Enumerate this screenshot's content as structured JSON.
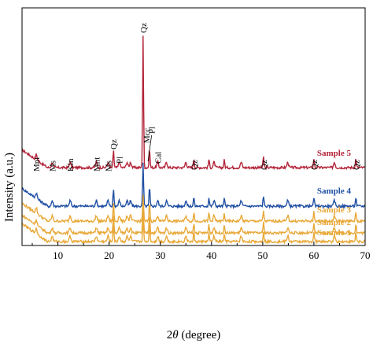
{
  "chart_data": {
    "type": "line",
    "xlabel_prefix": "2",
    "xlabel_theta": "θ",
    "xlabel_suffix": " (degree)",
    "ylabel": "Intensity (a.u.)",
    "xlim": [
      3,
      70
    ],
    "xticks": [
      10,
      20,
      30,
      40,
      50,
      60,
      70
    ],
    "grid": false,
    "major_peaks": [
      {
        "x": 20.86,
        "rel": 0.18
      },
      {
        "x": 26.64,
        "rel": 1.0
      },
      {
        "x": 27.9,
        "rel": 0.2
      },
      {
        "x": 36.55,
        "rel": 0.06
      },
      {
        "x": 39.5,
        "rel": 0.05
      },
      {
        "x": 42.5,
        "rel": 0.04
      },
      {
        "x": 50.15,
        "rel": 0.08
      },
      {
        "x": 60.0,
        "rel": 0.06
      },
      {
        "x": 68.2,
        "rel": 0.06
      }
    ],
    "series": [
      {
        "name": "Sample 5",
        "color": "#b3243a",
        "offset": 4,
        "qz_height": 1.0
      },
      {
        "name": "Sample 4",
        "color": "#1f4fa3",
        "offset": 3,
        "qz_height": 0.33
      },
      {
        "name": "Sample 3",
        "color": "#e8a838",
        "offset": 2,
        "qz_height": 0.2
      },
      {
        "name": "Sample 2",
        "color": "#e8a838",
        "offset": 1,
        "qz_height": 0.2
      },
      {
        "name": "Sample 1",
        "color": "#e8a838",
        "offset": 0,
        "qz_height": 0.2
      }
    ],
    "peak_labels": [
      {
        "text": "Mnt",
        "x": 5.8
      },
      {
        "text": "Ms",
        "x": 8.9
      },
      {
        "text": "Kln",
        "x": 12.4
      },
      {
        "text": "Mnt",
        "x": 17.5
      },
      {
        "text": "Ms",
        "x": 19.8
      },
      {
        "text": "Qz",
        "x": 20.86
      },
      {
        "text": "Pl",
        "x": 22.0
      },
      {
        "text": "Qz",
        "x": 26.64
      },
      {
        "text": "Mcc",
        "x": 27.3
      },
      {
        "text": "Pl",
        "x": 28.3
      },
      {
        "text": "Cal",
        "x": 29.5
      },
      {
        "text": "Qz",
        "x": 36.55
      },
      {
        "text": "Qz",
        "x": 50.15
      },
      {
        "text": "Qz",
        "x": 60.0
      },
      {
        "text": "Qz",
        "x": 68.2
      }
    ]
  }
}
